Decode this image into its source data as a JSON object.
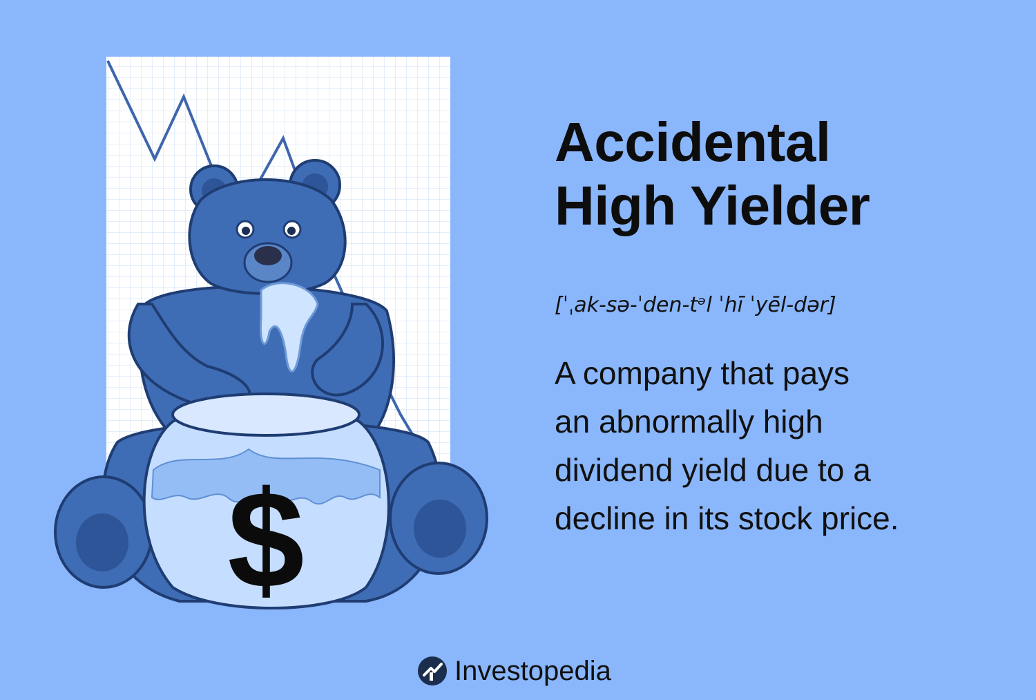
{
  "title": {
    "line1": "Accidental",
    "line2": "High Yielder"
  },
  "pronunciation": "[ˈˌak-sə-ˈden-tᵊl ˈhī ˈyēl-dər]",
  "definition": {
    "line1": "A company that pays",
    "line2": "an abnormally high",
    "line3": "dividend yield due to a",
    "line4": "decline in its stock price."
  },
  "illustration": {
    "jar_symbol": "$",
    "icons": [
      "bear-illustration",
      "honey-jar-icon",
      "declining-chart-line"
    ]
  },
  "brand": {
    "name": "Investopedia",
    "icon": "investopedia-logo-icon"
  },
  "colors": {
    "background": "#8ab6fb",
    "bear": "#3f6db5",
    "jar": "#c5ddff",
    "text": "#111111"
  }
}
